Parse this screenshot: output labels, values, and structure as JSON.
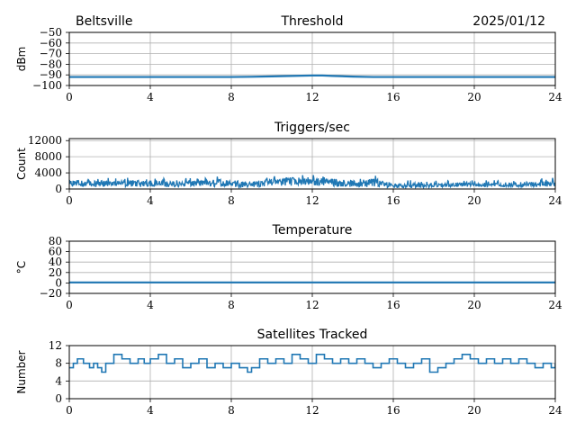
{
  "header": {
    "station": "Beltsville",
    "date": "2025/01/12"
  },
  "style": {
    "line_color": "#1f77b4",
    "grid_color": "#b0b0b0",
    "axis_color": "#000000"
  },
  "chart_data": [
    {
      "type": "line",
      "title": "Threshold",
      "xlabel": "",
      "ylabel": "dBm",
      "xlim": [
        0,
        24
      ],
      "ylim": [
        -100,
        -50
      ],
      "xticks": [
        0,
        4,
        8,
        12,
        16,
        20,
        24
      ],
      "xtick_labels": [
        "0",
        "4",
        "8",
        "12",
        "16",
        "20",
        "24"
      ],
      "yticks": [
        -100,
        -90,
        -80,
        -70,
        -60,
        -50
      ],
      "ytick_labels": [
        "−100",
        "−90",
        "−80",
        "−70",
        "−60",
        "−50"
      ],
      "grid": true,
      "series": [
        {
          "x": [
            0,
            2,
            4,
            6,
            8,
            9,
            10,
            11,
            12,
            12.5,
            13,
            14,
            15,
            16,
            18,
            20,
            22,
            24
          ],
          "y": [
            -92,
            -92,
            -92,
            -92,
            -92,
            -91.8,
            -91.4,
            -91.0,
            -90.6,
            -90.6,
            -91.0,
            -91.6,
            -92,
            -92,
            -92,
            -92,
            -92,
            -92
          ]
        }
      ]
    },
    {
      "type": "line",
      "title": "Triggers/sec",
      "xlabel": "",
      "ylabel": "Count",
      "xlim": [
        0,
        24
      ],
      "ylim": [
        0,
        12500
      ],
      "xticks": [
        0,
        4,
        8,
        12,
        16,
        20,
        24
      ],
      "xtick_labels": [
        "0",
        "4",
        "8",
        "12",
        "16",
        "20",
        "24"
      ],
      "yticks": [
        0,
        4000,
        8000,
        12000
      ],
      "ytick_labels": [
        "0",
        "4000",
        "8000",
        "12000"
      ],
      "grid": true,
      "series": [
        {
          "x": [
            0,
            0.5,
            1,
            1.5,
            2,
            2.5,
            3,
            3.5,
            4,
            4.5,
            5,
            5.5,
            6,
            6.5,
            7,
            7.5,
            8,
            8.5,
            9,
            9.5,
            10,
            10.5,
            11,
            11.5,
            12,
            12.5,
            13,
            13.5,
            14,
            14.5,
            15,
            15.5,
            16,
            16.5,
            17,
            17.5,
            18,
            18.5,
            19,
            19.5,
            20,
            20.5,
            21,
            21.5,
            22,
            22.5,
            23,
            23.5,
            24
          ],
          "low": [
            400,
            500,
            400,
            600,
            500,
            400,
            600,
            500,
            500,
            600,
            400,
            500,
            600,
            500,
            400,
            600,
            500,
            400,
            300,
            600,
            700,
            800,
            800,
            900,
            800,
            900,
            700,
            600,
            500,
            500,
            500,
            400,
            300,
            300,
            300,
            300,
            400,
            500,
            500,
            500,
            600,
            500,
            500,
            500,
            500,
            500,
            500,
            600,
            600
          ],
          "mid": [
            1400,
            1500,
            1300,
            1500,
            1400,
            1400,
            1500,
            1400,
            1500,
            1500,
            1400,
            1500,
            1600,
            1500,
            1500,
            1700,
            1600,
            1400,
            1200,
            1600,
            1800,
            1900,
            2000,
            2100,
            2000,
            2100,
            1900,
            1700,
            1500,
            1400,
            1300,
            1200,
            1000,
            900,
            900,
            800,
            900,
            1000,
            1000,
            1000,
            1100,
            1000,
            1000,
            1000,
            1000,
            1100,
            1100,
            1200,
            1300
          ],
          "high": [
            2800,
            2900,
            2600,
            3000,
            2700,
            2600,
            3000,
            2800,
            2900,
            2700,
            2600,
            2800,
            3000,
            2700,
            2900,
            3300,
            3000,
            2500,
            2300,
            2900,
            3200,
            3400,
            3800,
            3500,
            3600,
            3400,
            3300,
            3000,
            2700,
            2500,
            4400,
            2600,
            2400,
            2300,
            2200,
            2000,
            2100,
            2200,
            2300,
            2200,
            2400,
            2200,
            2200,
            2200,
            2200,
            2400,
            2300,
            2800,
            3300
          ]
        }
      ]
    },
    {
      "type": "line",
      "title": "Temperature",
      "xlabel": "",
      "ylabel": "°C",
      "xlim": [
        0,
        24
      ],
      "ylim": [
        -20,
        80
      ],
      "xticks": [
        0,
        4,
        8,
        12,
        16,
        20,
        24
      ],
      "xtick_labels": [
        "0",
        "4",
        "8",
        "12",
        "16",
        "20",
        "24"
      ],
      "yticks": [
        -20,
        0,
        20,
        40,
        60,
        80
      ],
      "ytick_labels": [
        "−20",
        "0",
        "20",
        "40",
        "60",
        "80"
      ],
      "grid": true,
      "series": [
        {
          "x": [
            0,
            24
          ],
          "y": [
            1,
            1
          ]
        }
      ]
    },
    {
      "type": "line",
      "title": "Satellites Tracked",
      "xlabel": "",
      "ylabel": "Number",
      "xlim": [
        0,
        24
      ],
      "ylim": [
        0,
        12
      ],
      "xticks": [
        0,
        4,
        8,
        12,
        16,
        20,
        24
      ],
      "xtick_labels": [
        "0",
        "4",
        "8",
        "12",
        "16",
        "20",
        "24"
      ],
      "yticks": [
        0,
        4,
        8,
        12
      ],
      "ytick_labels": [
        "0",
        "4",
        "8",
        "12"
      ],
      "grid": true,
      "series": [
        {
          "step": true,
          "x": [
            0,
            0.2,
            0.4,
            0.7,
            1.0,
            1.2,
            1.4,
            1.6,
            1.8,
            2.2,
            2.6,
            3.0,
            3.4,
            3.7,
            4.0,
            4.4,
            4.8,
            5.2,
            5.6,
            6.0,
            6.4,
            6.8,
            7.2,
            7.6,
            8.0,
            8.4,
            8.8,
            9.0,
            9.4,
            9.8,
            10.2,
            10.6,
            11.0,
            11.4,
            11.8,
            12.2,
            12.6,
            13.0,
            13.4,
            13.8,
            14.2,
            14.6,
            15.0,
            15.4,
            15.8,
            16.2,
            16.6,
            17.0,
            17.4,
            17.8,
            18.2,
            18.6,
            19.0,
            19.4,
            19.8,
            20.2,
            20.6,
            21.0,
            21.4,
            21.8,
            22.2,
            22.6,
            23.0,
            23.4,
            23.8,
            24.0
          ],
          "y": [
            7,
            8,
            9,
            8,
            7,
            8,
            7,
            6,
            8,
            10,
            9,
            8,
            9,
            8,
            9,
            10,
            8,
            9,
            7,
            8,
            9,
            7,
            8,
            7,
            8,
            7,
            6,
            7,
            9,
            8,
            9,
            8,
            10,
            9,
            8,
            10,
            9,
            8,
            9,
            8,
            9,
            8,
            7,
            8,
            9,
            8,
            7,
            8,
            9,
            6,
            7,
            8,
            9,
            10,
            9,
            8,
            9,
            8,
            9,
            8,
            9,
            8,
            7,
            8,
            7,
            8
          ]
        }
      ]
    }
  ]
}
